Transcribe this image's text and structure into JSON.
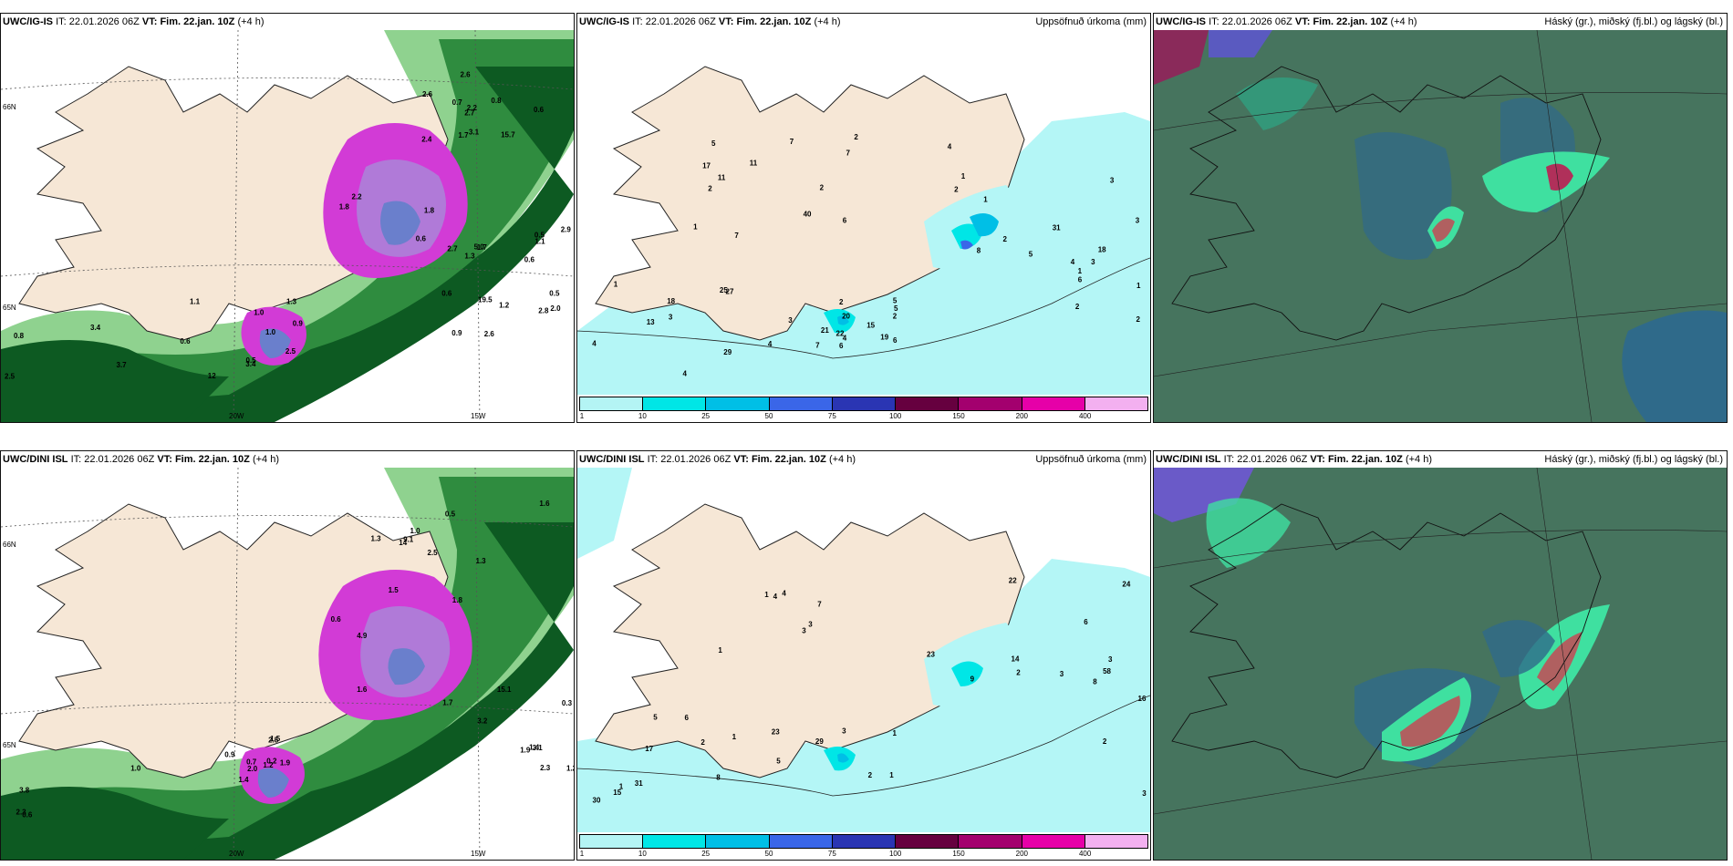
{
  "rows": [
    {
      "model": "UWC/IG-IS",
      "it_label": "IT:",
      "it_value": "22.01.2026 06Z",
      "vt_label": "VT:",
      "vt_value": "Fim. 22.jan. 10Z",
      "lead": "(+4 h)",
      "precip_title": "Uppsöfnuð úrkoma (mm)",
      "cloud_title": "Háský (gr.), miðský (fj.bl.) og lágský (bl.)",
      "overview_labels": [
        "0.6",
        "0.6",
        "0.5",
        "1.7",
        "2.5",
        "2.4",
        "1.8",
        "3.7",
        "1.2",
        "2.7",
        "0.8",
        "0.5",
        "0.6",
        "0.5",
        "0.6",
        "1.1",
        "5.0",
        "15.7",
        "3.1",
        "2.2",
        "2.9",
        "2.6",
        "2.8",
        "2.5",
        "1.0",
        "3.4",
        "1.8",
        "2.0",
        "1.3",
        "0.7",
        "0.9",
        "1.7",
        "3.4",
        "2.6",
        "2.7",
        "1.0",
        "0.9",
        "2.2",
        "0.8",
        "1.3",
        "1.1",
        "12",
        "19.5",
        "2.6",
        "0.6"
      ],
      "lat_labels": [
        "66N",
        "65N"
      ],
      "lon_labels": [
        "20W",
        "15W"
      ],
      "precip_labels": [
        "2",
        "1",
        "1",
        "1",
        "2",
        "1",
        "2",
        "4",
        "2",
        "3",
        "1",
        "2",
        "5",
        "4",
        "3",
        "3",
        "4",
        "4",
        "3",
        "4",
        "2",
        "2",
        "6",
        "5",
        "15",
        "13",
        "18",
        "20",
        "18",
        "11",
        "22",
        "27",
        "31",
        "29",
        "21",
        "25",
        "19",
        "6",
        "5",
        "3",
        "7",
        "7",
        "8",
        "2",
        "2",
        "17",
        "5",
        "7",
        "40",
        "7",
        "6",
        "11",
        "6",
        "4",
        "1"
      ]
    },
    {
      "model": "UWC/DINI ISL",
      "it_label": "IT:",
      "it_value": "22.01.2026 06Z",
      "vt_label": "VT:",
      "vt_value": "Fim. 22.jan. 10Z",
      "lead": "(+4 h)",
      "precip_title": "Uppsöfnuð úrkoma (mm)",
      "cloud_title": "Háský (gr.), miðský (fj.bl.) og lágský (bl.)",
      "overview_labels": [
        "0.3",
        "0.6",
        "1.3",
        "1.5",
        "1.9",
        "2.3",
        "2.0",
        "1.0",
        "1.7",
        "3.2",
        "3.8",
        "1.9",
        "9.1",
        "0.2",
        "1.0",
        "0.6",
        "0.5",
        "1.2",
        "4.9",
        "15.1",
        "14",
        "2.3",
        "1.4",
        "1.2",
        "0.7",
        "1.5",
        "3.1",
        "2.5",
        "1.8",
        "1.3",
        "0.9",
        "2.5",
        "1.6",
        "1.6",
        "1.4"
      ],
      "lat_labels": [
        "66N",
        "65N"
      ],
      "lon_labels": [
        "20W",
        "15W"
      ],
      "precip_labels": [
        "2",
        "1",
        "2",
        "1",
        "1",
        "5",
        "6",
        "7",
        "4",
        "3",
        "2",
        "1",
        "16",
        "14",
        "17",
        "24",
        "23",
        "22",
        "29",
        "30",
        "23",
        "31",
        "9",
        "3",
        "3",
        "3",
        "8",
        "8",
        "6",
        "15",
        "58",
        "3",
        "1",
        "2",
        "3",
        "5",
        "1",
        "4"
      ]
    }
  ],
  "colorbar": {
    "ticks": [
      "1",
      "10",
      "25",
      "50",
      "75",
      "100",
      "150",
      "200",
      "400"
    ],
    "colors": [
      "#b4f4f4",
      "#00e6e6",
      "#00bfe6",
      "#3a66e8",
      "#2a35b3",
      "#66003f",
      "#a3006e",
      "#e600a8",
      "#f3b0f0"
    ]
  },
  "colors": {
    "land": "#f6e7d6",
    "precip_light": "#b4f6f6",
    "cloud_bg": "#3e6a58",
    "green_dark": "#0d5a22",
    "green_mid": "#2f8c3f",
    "green_light": "#8fd28f",
    "magenta": "#d23bd6"
  }
}
